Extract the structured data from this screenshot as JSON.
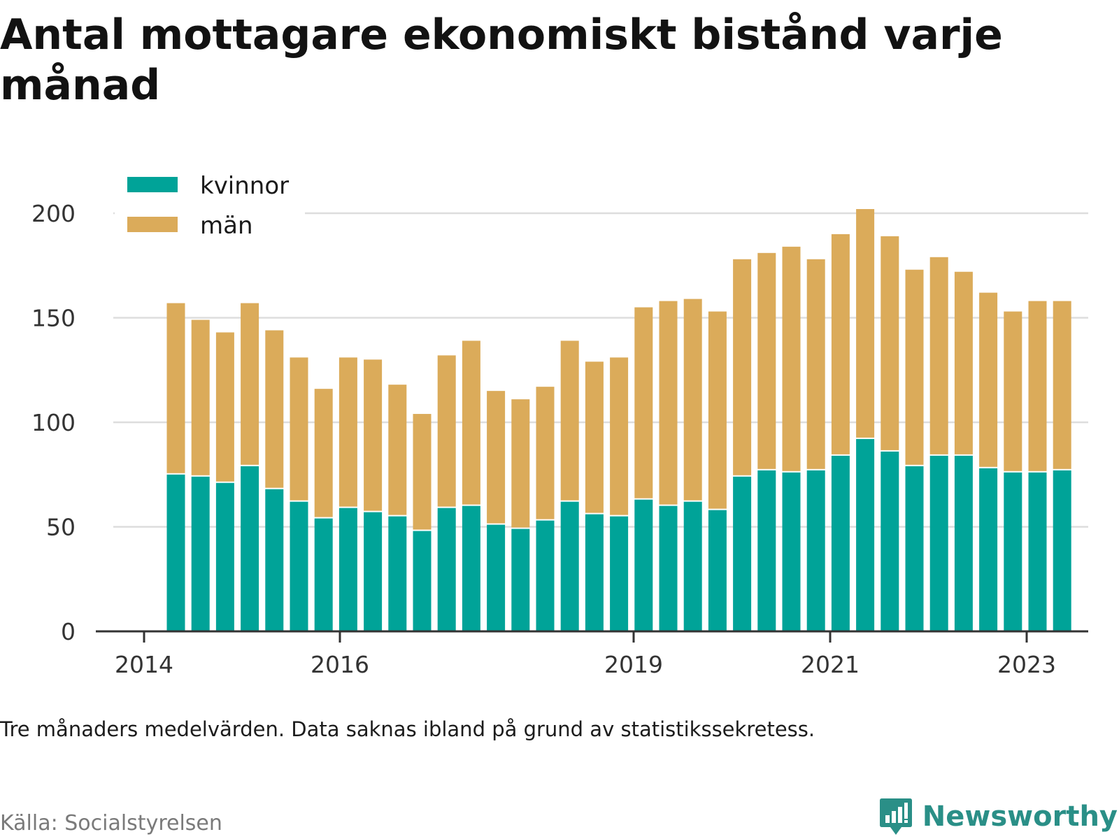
{
  "title": "Antal mottagare ekonomiskt bistånd varje månad",
  "note": "Tre månaders medelvärden. Data saknas ibland på grund av statistikssekretess.",
  "source": "Källa: Socialstyrelsen",
  "brand": {
    "name": "Newsworthy",
    "icon": "newsworthy-logo-icon",
    "color": "#2a8f87"
  },
  "chart_data": {
    "type": "bar",
    "stacked": true,
    "title": "Antal mottagare ekonomiskt bistånd varje månad",
    "xlabel": "",
    "ylabel": "",
    "ylim": [
      0,
      200
    ],
    "yticks": [
      "0",
      "50",
      "100",
      "150",
      "200"
    ],
    "xticks": [
      "2014",
      "2016",
      "2019",
      "2021",
      "2023"
    ],
    "grid": true,
    "legend_position": "top-left",
    "categories": [
      "2014-Q2",
      "2014-Q3",
      "2014-Q4",
      "2015-Q1",
      "2015-Q2",
      "2015-Q3",
      "2015-Q4",
      "2016-Q1",
      "2016-Q2",
      "2016-Q3",
      "2016-Q4",
      "2017-Q1",
      "2017-Q2",
      "2017-Q3",
      "2017-Q4",
      "2018-Q1",
      "2018-Q2",
      "2018-Q3",
      "2018-Q4",
      "2019-Q1",
      "2019-Q2",
      "2019-Q3",
      "2019-Q4",
      "2020-Q1",
      "2020-Q2",
      "2020-Q3",
      "2020-Q4",
      "2021-Q1",
      "2021-Q2",
      "2021-Q3",
      "2021-Q4",
      "2022-Q1",
      "2022-Q2",
      "2022-Q3",
      "2022-Q4",
      "2023-Q1",
      "2023-Q2"
    ],
    "series": [
      {
        "name": "kvinnor",
        "color": "#00a398",
        "values": [
          75,
          74,
          71,
          79,
          68,
          62,
          54,
          59,
          57,
          55,
          48,
          59,
          60,
          51,
          49,
          53,
          62,
          56,
          55,
          63,
          60,
          62,
          58,
          74,
          77,
          76,
          77,
          84,
          92,
          86,
          79,
          84,
          84,
          78,
          76,
          76,
          77
        ]
      },
      {
        "name": "män",
        "color": "#dbab5a",
        "values": [
          82,
          75,
          72,
          78,
          76,
          69,
          62,
          72,
          73,
          63,
          56,
          73,
          79,
          64,
          62,
          64,
          77,
          73,
          76,
          92,
          98,
          97,
          95,
          104,
          104,
          108,
          101,
          106,
          110,
          103,
          94,
          95,
          88,
          84,
          77,
          82,
          81
        ]
      }
    ]
  }
}
